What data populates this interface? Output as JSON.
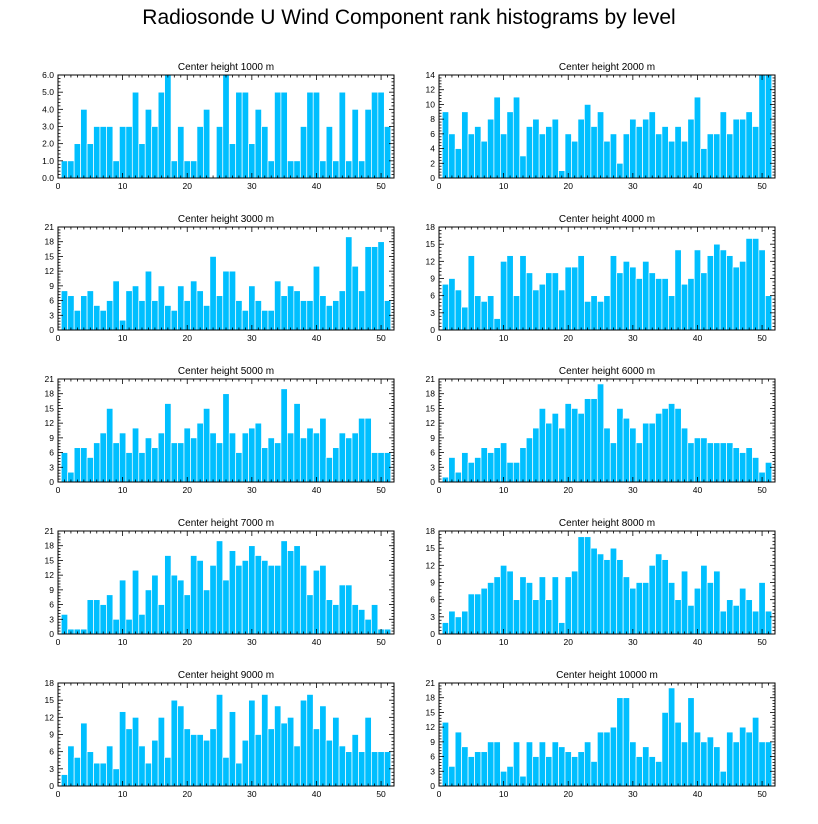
{
  "page": {
    "title": "Radiosonde U Wind Component rank histograms by level"
  },
  "style": {
    "bar_color": "#00BFFF",
    "bar_edge": "#ffffff",
    "axis_color": "#000000"
  },
  "chart_data": [
    {
      "type": "bar",
      "title": "Center height 1000 m",
      "xlim": [
        0,
        52
      ],
      "xticks": [
        0,
        10,
        20,
        30,
        40,
        50
      ],
      "ylim": [
        0,
        6
      ],
      "yticks": [
        0,
        1,
        2,
        3,
        4,
        5,
        6
      ],
      "ytick_labels": [
        "0.0",
        "1.0",
        "2.0",
        "3.0",
        "4.0",
        "5.0",
        "6.0"
      ],
      "values": [
        1,
        1,
        2,
        4,
        2,
        3,
        3,
        3,
        1,
        3,
        3,
        5,
        2,
        4,
        3,
        5,
        6,
        1,
        3,
        1,
        1,
        3,
        4,
        0,
        3,
        6,
        2,
        5,
        5,
        2,
        4,
        3,
        1,
        5,
        5,
        1,
        1,
        3,
        5,
        5,
        1,
        3,
        1,
        5,
        1,
        4,
        1,
        4,
        5,
        5,
        3
      ]
    },
    {
      "type": "bar",
      "title": "Center height 2000 m",
      "xlim": [
        0,
        52
      ],
      "xticks": [
        0,
        10,
        20,
        30,
        40,
        50
      ],
      "ylim": [
        0,
        14
      ],
      "yticks": [
        0,
        2,
        4,
        6,
        8,
        10,
        12,
        14
      ],
      "ytick_labels": [
        "0",
        "2",
        "4",
        "6",
        "8",
        "10",
        "12",
        "14"
      ],
      "values": [
        9,
        6,
        4,
        9,
        6,
        7,
        5,
        8,
        11,
        6,
        9,
        11,
        3,
        7,
        8,
        6,
        7,
        8,
        1,
        6,
        5,
        8,
        10,
        7,
        9,
        5,
        6,
        2,
        6,
        8,
        7,
        8,
        9,
        6,
        7,
        5,
        7,
        5,
        8,
        11,
        4,
        6,
        6,
        9,
        6,
        8,
        8,
        9,
        7,
        14,
        14
      ]
    },
    {
      "type": "bar",
      "title": "Center height 3000 m",
      "xlim": [
        0,
        52
      ],
      "xticks": [
        0,
        10,
        20,
        30,
        40,
        50
      ],
      "ylim": [
        0,
        21
      ],
      "yticks": [
        0,
        3,
        6,
        9,
        12,
        15,
        18,
        21
      ],
      "ytick_labels": [
        "0",
        "3",
        "6",
        "9",
        "12",
        "15",
        "18",
        "21"
      ],
      "values": [
        8,
        7,
        4,
        7,
        8,
        5,
        4,
        6,
        10,
        2,
        8,
        9,
        6,
        12,
        6,
        9,
        5,
        4,
        9,
        6,
        10,
        8,
        5,
        15,
        7,
        12,
        12,
        6,
        4,
        9,
        6,
        4,
        4,
        10,
        7,
        9,
        8,
        6,
        6,
        13,
        7,
        5,
        6,
        8,
        19,
        13,
        8,
        17,
        17,
        18,
        6
      ]
    },
    {
      "type": "bar",
      "title": "Center height 4000 m",
      "xlim": [
        0,
        52
      ],
      "xticks": [
        0,
        10,
        20,
        30,
        40,
        50
      ],
      "ylim": [
        0,
        18
      ],
      "yticks": [
        0,
        3,
        6,
        9,
        12,
        15,
        18
      ],
      "ytick_labels": [
        "0",
        "3",
        "6",
        "9",
        "12",
        "15",
        "18"
      ],
      "values": [
        8,
        9,
        7,
        4,
        13,
        6,
        5,
        6,
        2,
        12,
        13,
        6,
        13,
        10,
        7,
        8,
        10,
        10,
        7,
        11,
        11,
        13,
        5,
        6,
        5,
        6,
        13,
        10,
        12,
        11,
        9,
        12,
        10,
        9,
        9,
        6,
        14,
        8,
        9,
        14,
        10,
        13,
        15,
        14,
        13,
        11,
        12,
        16,
        16,
        14,
        6
      ]
    },
    {
      "type": "bar",
      "title": "Center height 5000 m",
      "xlim": [
        0,
        52
      ],
      "xticks": [
        0,
        10,
        20,
        30,
        40,
        50
      ],
      "ylim": [
        0,
        21
      ],
      "yticks": [
        0,
        3,
        6,
        9,
        12,
        15,
        18,
        21
      ],
      "ytick_labels": [
        "0",
        "3",
        "6",
        "9",
        "12",
        "15",
        "18",
        "21"
      ],
      "values": [
        6,
        2,
        7,
        7,
        5,
        8,
        10,
        15,
        8,
        10,
        6,
        11,
        6,
        9,
        7,
        10,
        16,
        8,
        8,
        11,
        9,
        12,
        15,
        10,
        8,
        18,
        10,
        6,
        10,
        11,
        12,
        7,
        9,
        8,
        19,
        10,
        16,
        9,
        11,
        10,
        13,
        5,
        7,
        10,
        9,
        10,
        13,
        13,
        6,
        6,
        6
      ]
    },
    {
      "type": "bar",
      "title": "Center height 6000 m",
      "xlim": [
        0,
        52
      ],
      "xticks": [
        0,
        10,
        20,
        30,
        40,
        50
      ],
      "ylim": [
        0,
        21
      ],
      "yticks": [
        0,
        3,
        6,
        9,
        12,
        15,
        18,
        21
      ],
      "ytick_labels": [
        "0",
        "3",
        "6",
        "9",
        "12",
        "15",
        "18",
        "21"
      ],
      "values": [
        1,
        5,
        2,
        6,
        4,
        5,
        7,
        6,
        7,
        8,
        4,
        4,
        7,
        9,
        11,
        15,
        12,
        14,
        11,
        16,
        15,
        14,
        17,
        17,
        20,
        11,
        8,
        15,
        13,
        11,
        8,
        12,
        12,
        14,
        15,
        16,
        15,
        11,
        8,
        9,
        9,
        8,
        8,
        8,
        8,
        7,
        6,
        7,
        5,
        2,
        4
      ]
    },
    {
      "type": "bar",
      "title": "Center height 7000 m",
      "xlim": [
        0,
        52
      ],
      "xticks": [
        0,
        10,
        20,
        30,
        40,
        50
      ],
      "ylim": [
        0,
        21
      ],
      "yticks": [
        0,
        3,
        6,
        9,
        12,
        15,
        18,
        21
      ],
      "ytick_labels": [
        "0",
        "3",
        "6",
        "9",
        "12",
        "15",
        "18",
        "21"
      ],
      "values": [
        4,
        1,
        1,
        1,
        7,
        7,
        6,
        8,
        3,
        11,
        3,
        13,
        4,
        9,
        12,
        6,
        16,
        12,
        11,
        8,
        16,
        15,
        9,
        14,
        19,
        11,
        17,
        14,
        15,
        18,
        16,
        15,
        14,
        14,
        19,
        17,
        18,
        14,
        8,
        13,
        14,
        7,
        6,
        10,
        10,
        6,
        5,
        3,
        6,
        1,
        1
      ]
    },
    {
      "type": "bar",
      "title": "Center height 8000 m",
      "xlim": [
        0,
        52
      ],
      "xticks": [
        0,
        10,
        20,
        30,
        40,
        50
      ],
      "ylim": [
        0,
        18
      ],
      "yticks": [
        0,
        3,
        6,
        9,
        12,
        15,
        18
      ],
      "ytick_labels": [
        "0",
        "3",
        "6",
        "9",
        "12",
        "15",
        "18"
      ],
      "values": [
        2,
        4,
        3,
        4,
        7,
        7,
        8,
        9,
        10,
        12,
        11,
        6,
        10,
        9,
        6,
        10,
        6,
        10,
        2,
        10,
        11,
        17,
        17,
        15,
        14,
        13,
        15,
        13,
        10,
        8,
        9,
        9,
        12,
        14,
        13,
        9,
        6,
        11,
        5,
        8,
        12,
        9,
        11,
        4,
        6,
        5,
        8,
        6,
        4,
        9,
        4
      ]
    },
    {
      "type": "bar",
      "title": "Center height 9000 m",
      "xlim": [
        0,
        52
      ],
      "xticks": [
        0,
        10,
        20,
        30,
        40,
        50
      ],
      "ylim": [
        0,
        18
      ],
      "yticks": [
        0,
        3,
        6,
        9,
        12,
        15,
        18
      ],
      "ytick_labels": [
        "0",
        "3",
        "6",
        "9",
        "12",
        "15",
        "18"
      ],
      "values": [
        2,
        7,
        5,
        11,
        6,
        4,
        4,
        7,
        3,
        13,
        10,
        12,
        7,
        4,
        8,
        12,
        5,
        15,
        14,
        10,
        9,
        9,
        8,
        10,
        16,
        5,
        13,
        4,
        8,
        15,
        9,
        16,
        10,
        14,
        11,
        12,
        7,
        15,
        16,
        10,
        14,
        8,
        12,
        7,
        6,
        9,
        6,
        12,
        6,
        6,
        6
      ]
    },
    {
      "type": "bar",
      "title": "Center height 10000 m",
      "xlim": [
        0,
        52
      ],
      "xticks": [
        0,
        10,
        20,
        30,
        40,
        50
      ],
      "ylim": [
        0,
        21
      ],
      "yticks": [
        0,
        3,
        6,
        9,
        12,
        15,
        18,
        21
      ],
      "ytick_labels": [
        "0",
        "3",
        "6",
        "9",
        "12",
        "15",
        "18",
        "21"
      ],
      "values": [
        13,
        4,
        11,
        8,
        6,
        7,
        7,
        9,
        9,
        3,
        4,
        9,
        2,
        9,
        6,
        9,
        6,
        9,
        8,
        7,
        6,
        7,
        9,
        5,
        11,
        11,
        12,
        18,
        18,
        9,
        6,
        8,
        6,
        5,
        15,
        20,
        13,
        9,
        18,
        11,
        9,
        10,
        8,
        3,
        11,
        9,
        12,
        11,
        14,
        9,
        9
      ]
    }
  ]
}
